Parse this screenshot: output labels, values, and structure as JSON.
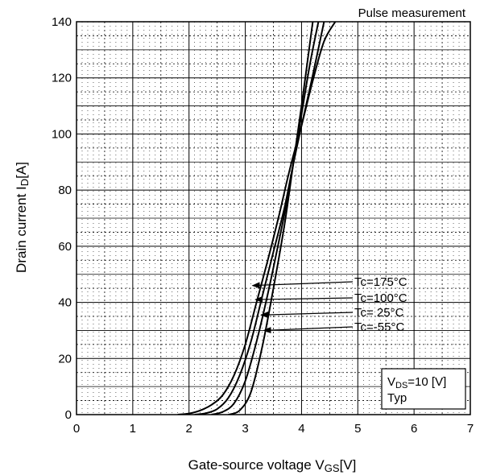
{
  "chart_data": {
    "type": "line",
    "title": "Pulse measurement",
    "xlabel": "Gate-source voltage  V",
    "xlabel_sub": "GS",
    "xlabel_unit": "[V]",
    "ylabel": "Drain current  I",
    "ylabel_sub": "D",
    "ylabel_unit": "[A]",
    "xlim": [
      0,
      7
    ],
    "ylim": [
      0,
      140
    ],
    "xticks": [
      "0",
      "1",
      "2",
      "3",
      "4",
      "5",
      "6",
      "7"
    ],
    "yticks": [
      "0",
      "20",
      "40",
      "60",
      "80",
      "100",
      "120",
      "140"
    ],
    "grid": true,
    "condition": {
      "vds_main": "V",
      "vds_sub": "DS",
      "vds_value": "=10 [V]",
      "typ": "Typ"
    },
    "series": [
      {
        "name": "Tc=175°C",
        "annotation": {
          "x": 3.1,
          "y": 46
        },
        "points": [
          [
            1.8,
            0
          ],
          [
            2.0,
            0.4
          ],
          [
            2.2,
            1.5
          ],
          [
            2.4,
            3.5
          ],
          [
            2.6,
            7
          ],
          [
            2.8,
            14
          ],
          [
            3.0,
            25
          ],
          [
            3.2,
            40
          ],
          [
            3.4,
            55
          ],
          [
            3.6,
            71
          ],
          [
            3.75,
            84
          ],
          [
            3.85,
            92
          ],
          [
            4.0,
            103
          ],
          [
            4.2,
            119
          ],
          [
            4.4,
            133
          ],
          [
            4.6,
            140
          ]
        ]
      },
      {
        "name": "Tc=100°C",
        "annotation": {
          "x": 3.15,
          "y": 41
        },
        "points": [
          [
            2.1,
            0
          ],
          [
            2.3,
            0.5
          ],
          [
            2.5,
            2
          ],
          [
            2.7,
            6
          ],
          [
            2.9,
            14
          ],
          [
            3.1,
            26
          ],
          [
            3.3,
            42
          ],
          [
            3.5,
            58
          ],
          [
            3.7,
            74
          ],
          [
            3.85,
            89
          ],
          [
            4.0,
            103
          ],
          [
            4.2,
            121
          ],
          [
            4.4,
            140
          ]
        ]
      },
      {
        "name": "Tc= 25°C",
        "annotation": {
          "x": 3.25,
          "y": 35.5
        },
        "points": [
          [
            2.4,
            0
          ],
          [
            2.6,
            1
          ],
          [
            2.8,
            4
          ],
          [
            3.0,
            12
          ],
          [
            3.2,
            26
          ],
          [
            3.4,
            43
          ],
          [
            3.6,
            62
          ],
          [
            3.75,
            77
          ],
          [
            3.85,
            89
          ],
          [
            4.0,
            107
          ],
          [
            4.15,
            125
          ],
          [
            4.3,
            140
          ]
        ]
      },
      {
        "name": "Tc=-55°C",
        "annotation": {
          "x": 3.3,
          "y": 30
        },
        "points": [
          [
            2.7,
            0
          ],
          [
            2.9,
            1.5
          ],
          [
            3.1,
            8
          ],
          [
            3.3,
            24
          ],
          [
            3.5,
            45
          ],
          [
            3.7,
            68
          ],
          [
            3.85,
            89
          ],
          [
            4.0,
            110
          ],
          [
            4.1,
            125
          ],
          [
            4.2,
            140
          ]
        ]
      }
    ]
  }
}
